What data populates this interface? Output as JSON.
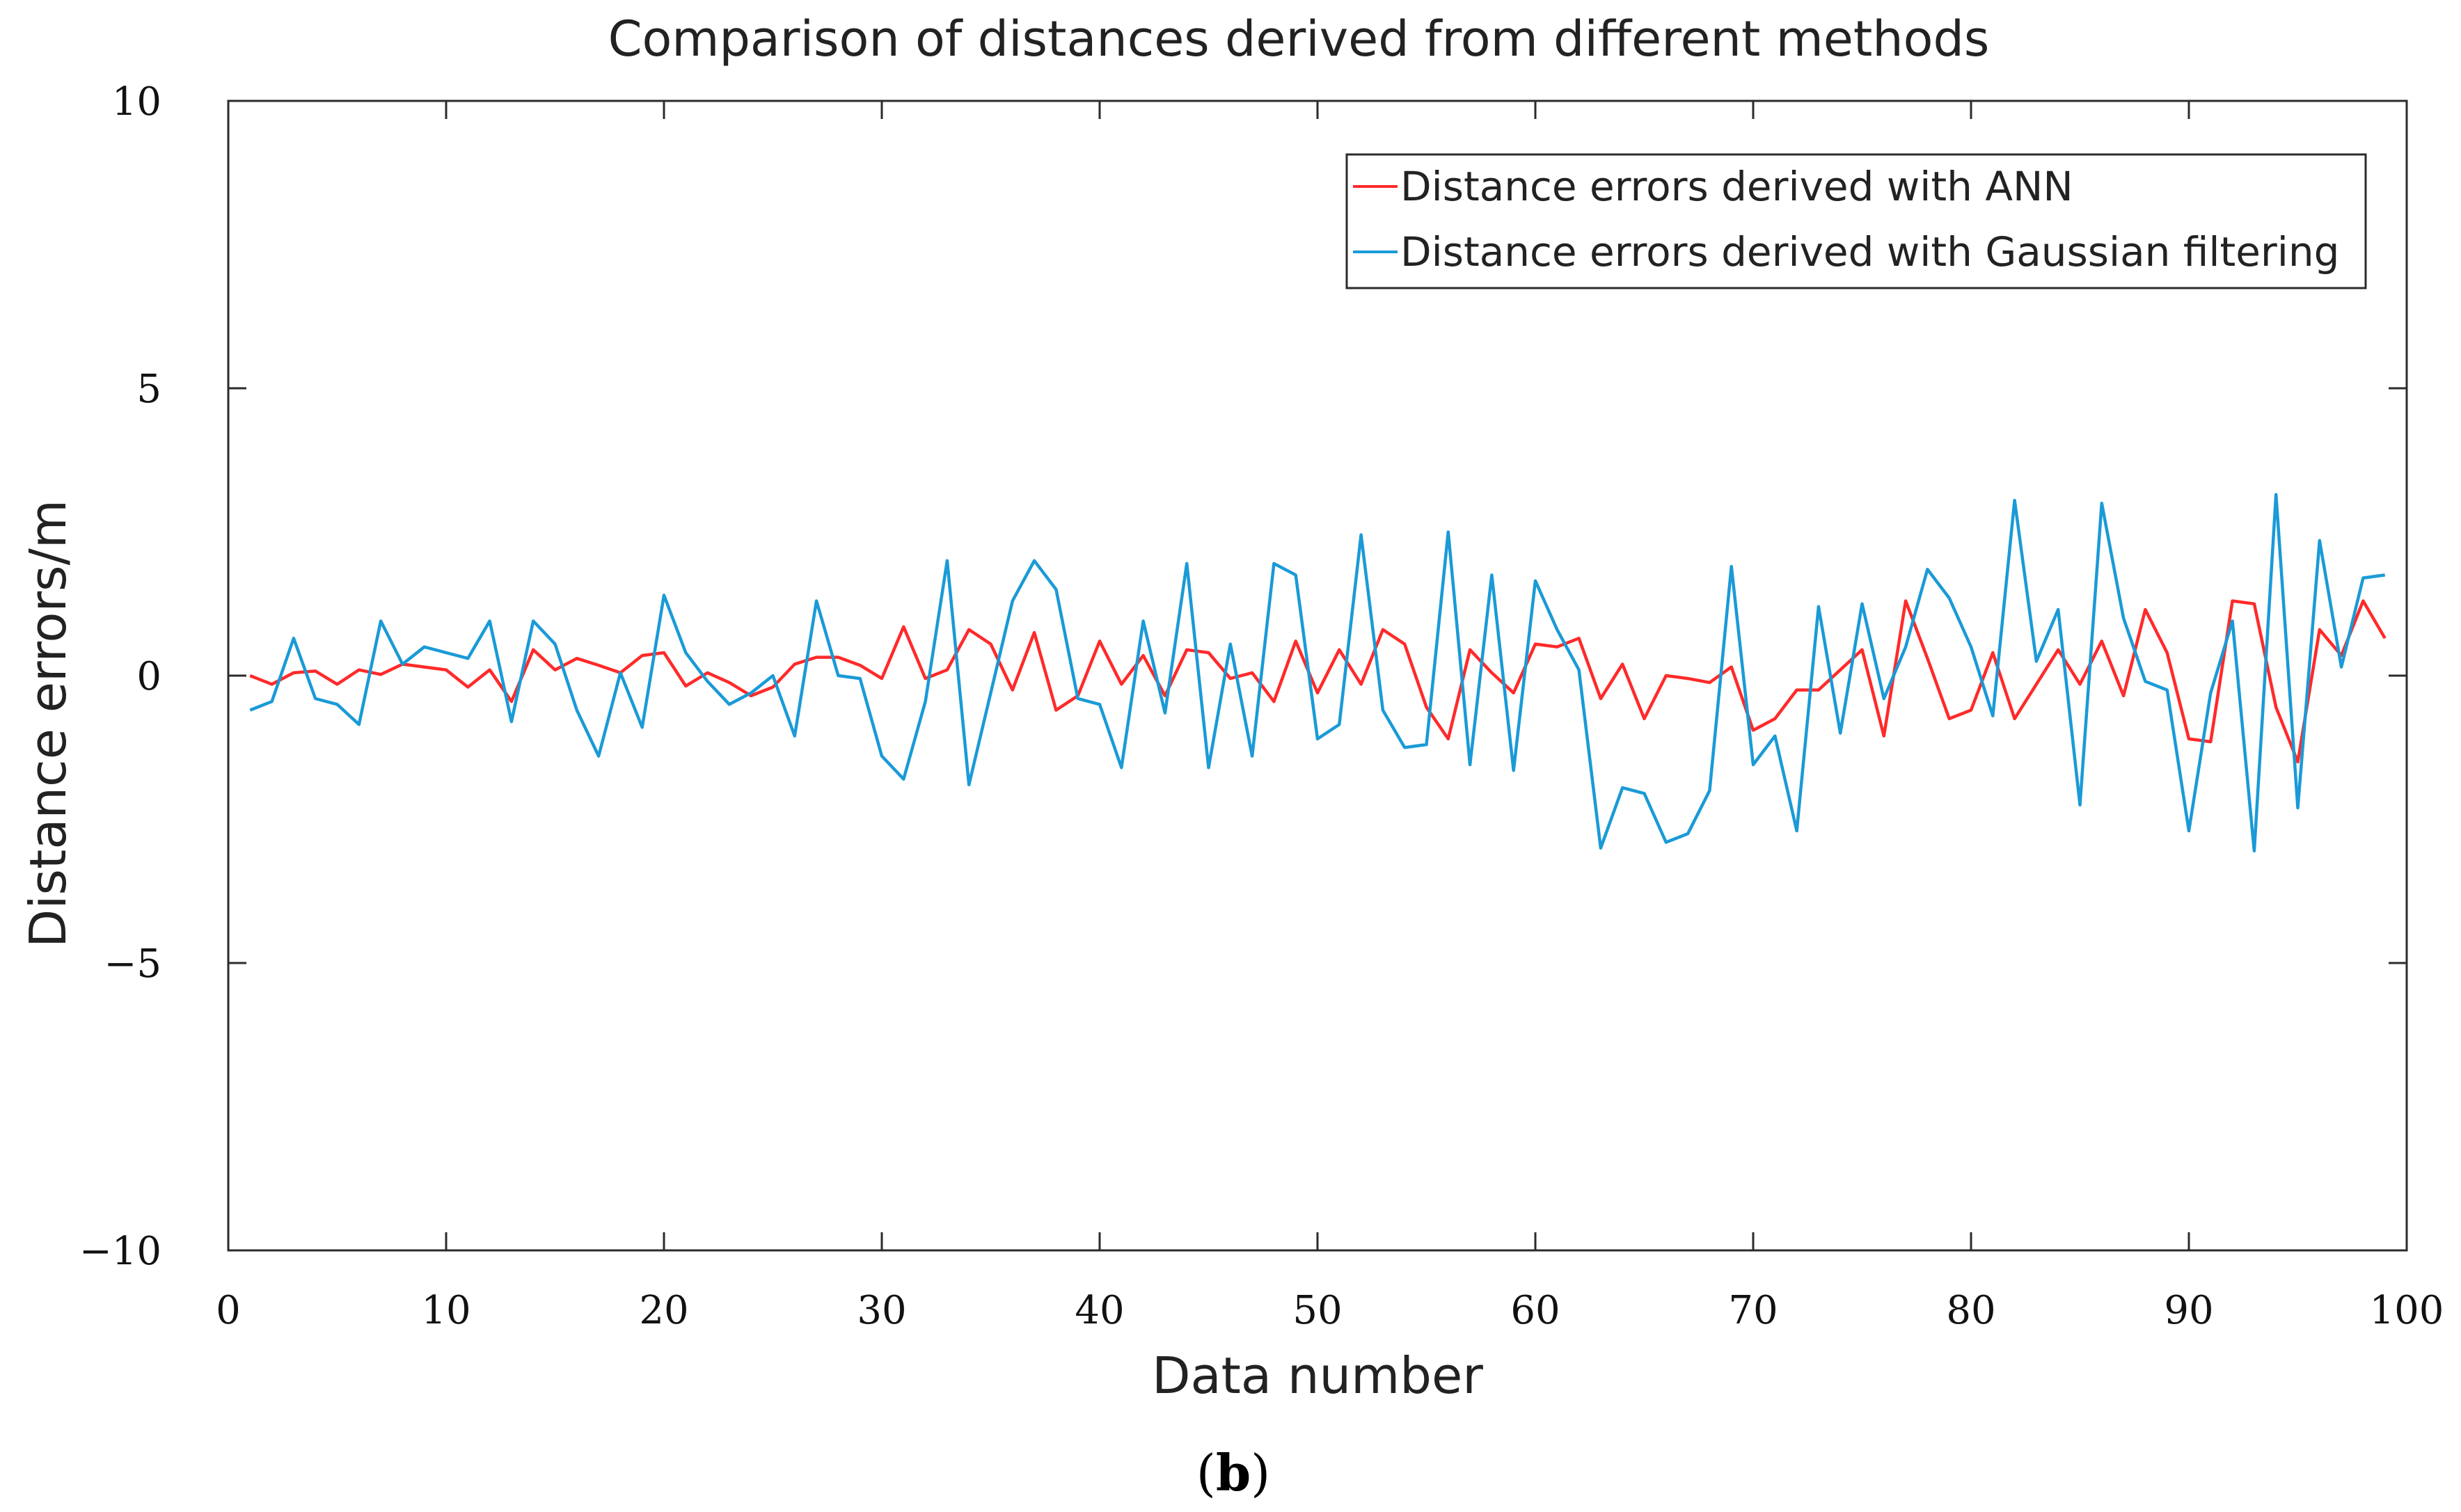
{
  "chart_data": {
    "type": "line",
    "title": "Comparison of distances derived from different methods",
    "xlabel": "Data number",
    "ylabel": "Distance errors/m",
    "caption_open": "(",
    "caption_letter": "b",
    "caption_close": ")",
    "xlim": [
      0,
      100
    ],
    "ylim": [
      -10,
      10
    ],
    "xticks": [
      0,
      10,
      20,
      30,
      40,
      50,
      60,
      70,
      80,
      90,
      100
    ],
    "yticks": [
      10,
      5,
      0,
      -5,
      -10
    ],
    "ytick_labels": [
      "10",
      "5",
      "0",
      "−5",
      "−10"
    ],
    "grid": false,
    "legend_position": "top-right",
    "x": [
      1,
      2,
      3,
      4,
      5,
      6,
      7,
      8,
      9,
      10,
      11,
      12,
      13,
      14,
      15,
      16,
      17,
      18,
      19,
      20,
      21,
      22,
      23,
      24,
      25,
      26,
      27,
      28,
      29,
      30,
      31,
      32,
      33,
      34,
      35,
      36,
      37,
      38,
      39,
      40,
      41,
      42,
      43,
      44,
      45,
      46,
      47,
      48,
      49,
      50,
      51,
      52,
      53,
      54,
      55,
      56,
      57,
      58,
      59,
      60,
      61,
      62,
      63,
      64,
      65,
      66,
      67,
      68,
      69,
      70,
      71,
      72,
      73,
      74,
      75,
      76,
      77,
      78,
      79,
      80,
      81,
      82,
      83,
      84,
      85,
      86,
      87,
      88,
      89,
      90,
      91,
      92,
      93,
      94,
      95,
      96,
      97,
      98,
      99
    ],
    "series": [
      {
        "name": "Distance errors derived with ANN",
        "color": "#ff2a2a",
        "values": [
          0.0,
          -0.15,
          0.05,
          0.08,
          -0.15,
          0.1,
          0.02,
          0.2,
          0.15,
          0.1,
          -0.2,
          0.1,
          -0.45,
          0.45,
          0.1,
          0.3,
          0.18,
          0.05,
          0.35,
          0.4,
          -0.18,
          0.05,
          -0.12,
          -0.35,
          -0.2,
          0.2,
          0.32,
          0.32,
          0.18,
          -0.05,
          0.85,
          -0.05,
          0.1,
          0.8,
          0.55,
          -0.25,
          0.75,
          -0.6,
          -0.35,
          0.6,
          -0.15,
          0.35,
          -0.35,
          0.45,
          0.4,
          -0.05,
          0.05,
          -0.45,
          0.6,
          -0.3,
          0.45,
          -0.15,
          0.8,
          0.55,
          -0.55,
          -1.1,
          0.45,
          0.05,
          -0.3,
          0.55,
          0.5,
          0.65,
          -0.4,
          0.2,
          -0.75,
          0.0,
          -0.05,
          -0.12,
          0.15,
          -0.95,
          -0.75,
          -0.25,
          -0.25,
          0.1,
          0.45,
          -1.05,
          1.3,
          0.3,
          -0.75,
          -0.6,
          0.4,
          -0.75,
          -0.15,
          0.45,
          -0.15,
          0.6,
          -0.35,
          1.15,
          0.4,
          -1.1,
          -1.15,
          1.3,
          1.25,
          -0.55,
          -1.5,
          0.8,
          0.35,
          1.3,
          0.65
        ]
      },
      {
        "name": "Distance errors derived with Gaussian filtering",
        "color": "#1a9ad7",
        "values": [
          -0.6,
          -0.45,
          0.65,
          -0.4,
          -0.5,
          -0.85,
          0.95,
          0.2,
          0.5,
          0.4,
          0.3,
          0.95,
          -0.8,
          0.95,
          0.55,
          -0.6,
          -1.4,
          0.05,
          -0.9,
          1.4,
          0.4,
          -0.1,
          -0.5,
          -0.3,
          0.0,
          -1.05,
          1.3,
          0.0,
          -0.05,
          -1.4,
          -1.8,
          -0.45,
          2.0,
          -1.9,
          -0.3,
          1.3,
          2.0,
          1.5,
          -0.4,
          -0.5,
          -1.6,
          0.95,
          -0.65,
          1.95,
          -1.6,
          0.55,
          -1.4,
          1.95,
          1.75,
          -1.1,
          -0.85,
          2.45,
          -0.6,
          -1.25,
          -1.2,
          2.5,
          -1.55,
          1.75,
          -1.65,
          1.65,
          0.8,
          0.1,
          -3.0,
          -1.95,
          -2.05,
          -2.9,
          -2.75,
          -2.0,
          1.9,
          -1.55,
          -1.05,
          -2.7,
          1.2,
          -1.0,
          1.25,
          -0.4,
          0.5,
          1.85,
          1.35,
          0.5,
          -0.7,
          3.05,
          0.25,
          1.15,
          -2.25,
          3.0,
          1.0,
          -0.1,
          -0.25,
          -2.7,
          -0.3,
          0.95,
          -3.05,
          3.15,
          -2.3,
          2.35,
          0.15,
          1.7,
          1.75
        ]
      }
    ]
  }
}
